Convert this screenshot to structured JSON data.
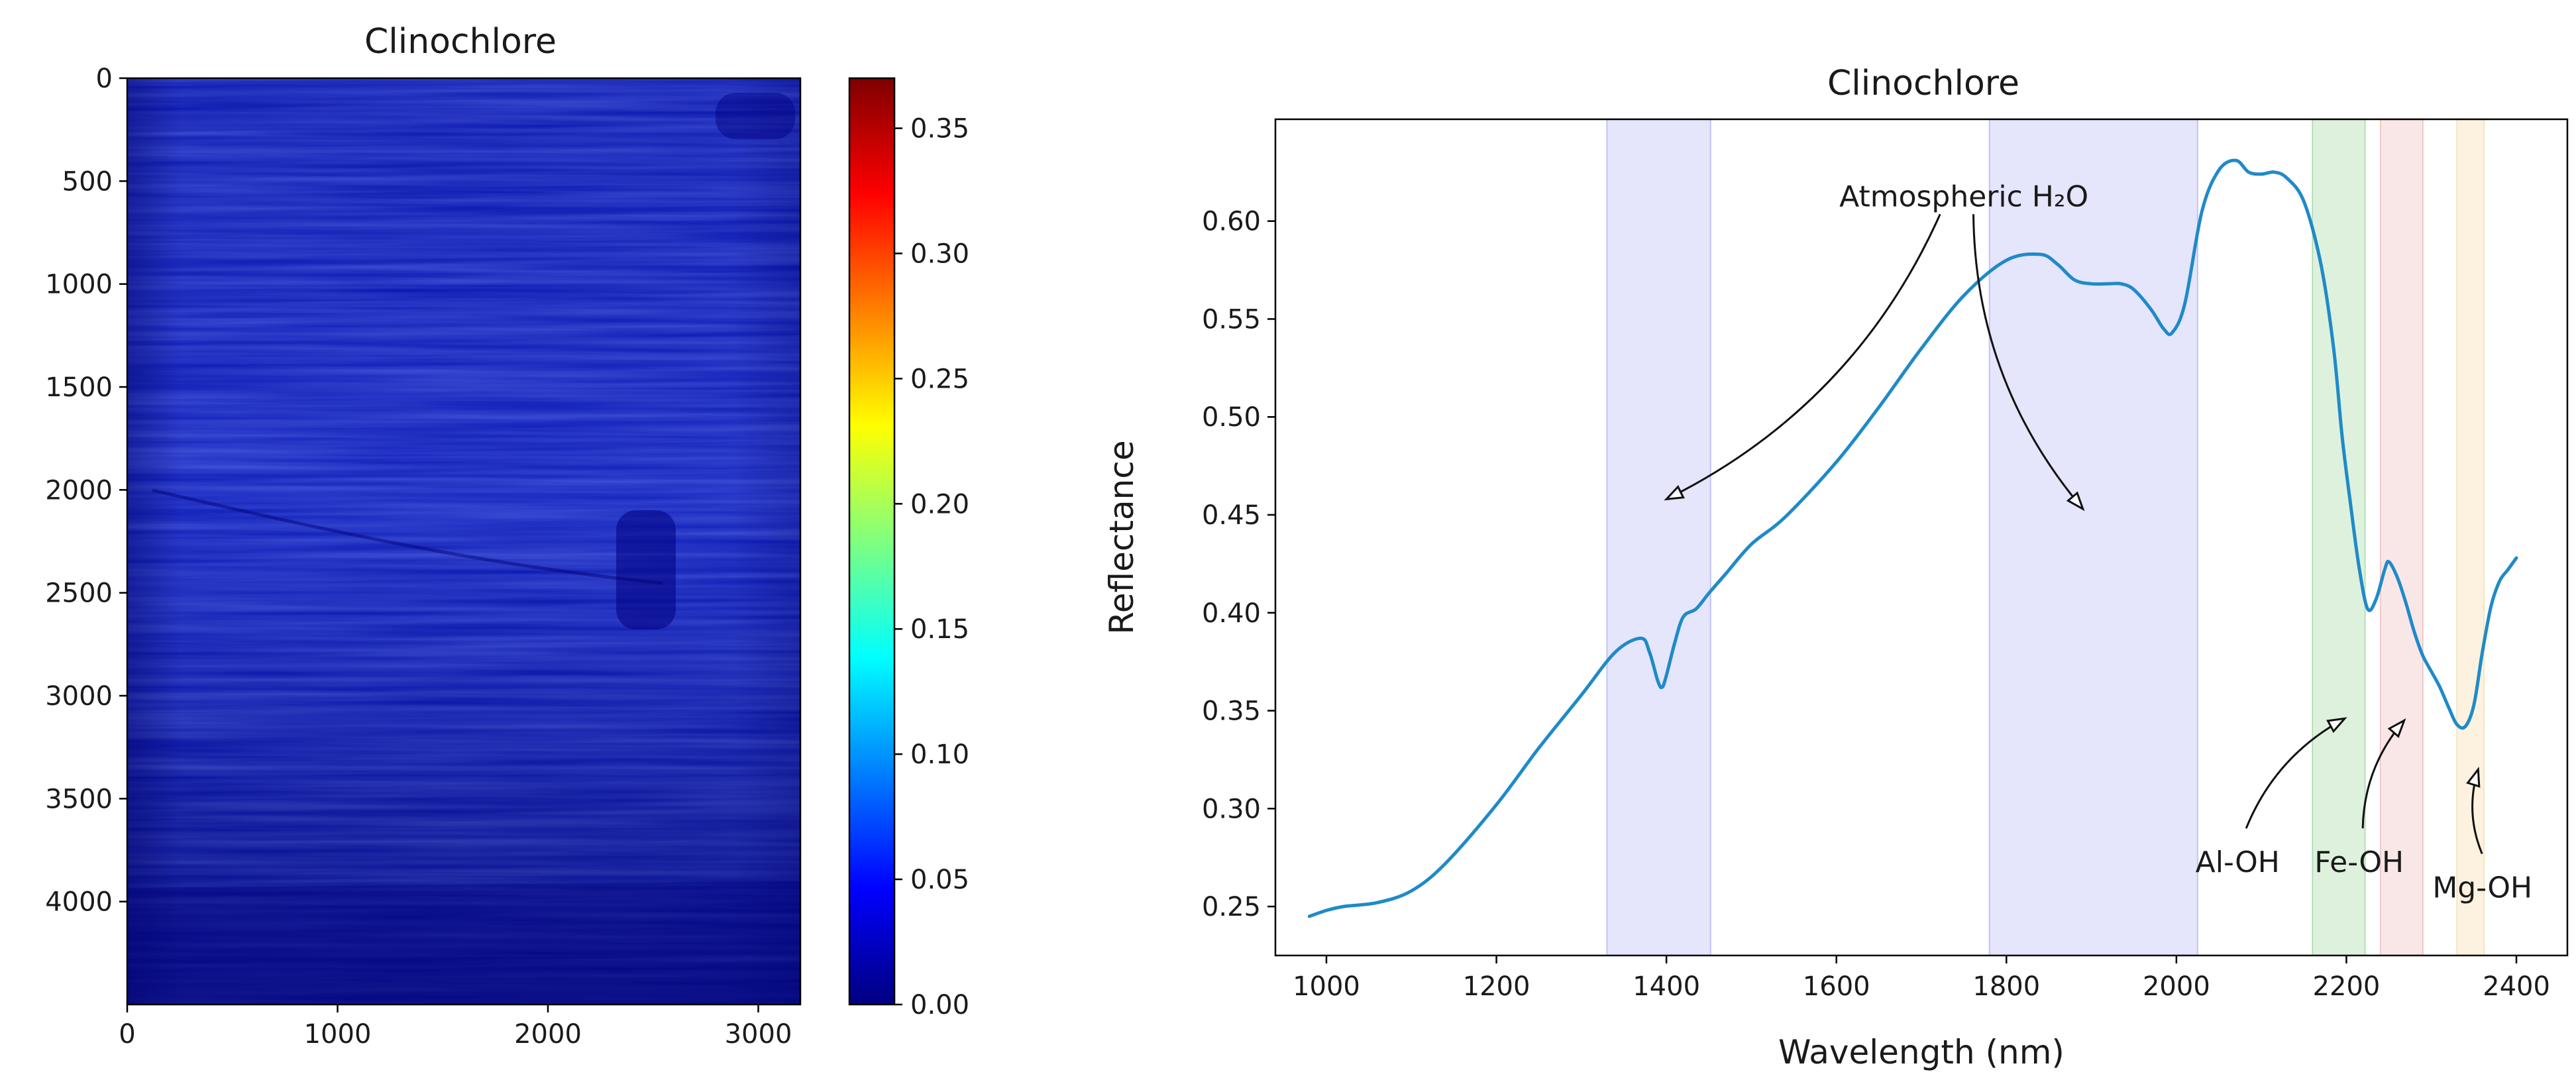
{
  "chart_data": [
    {
      "type": "heatmap",
      "title": "Clinochlore",
      "xlim": [
        0,
        3200
      ],
      "ylim": [
        4500,
        0
      ],
      "x_ticks": [
        "0",
        "1000",
        "2000",
        "3000"
      ],
      "y_ticks": [
        "0",
        "500",
        "1000",
        "1500",
        "2000",
        "2500",
        "3000",
        "3500",
        "4000"
      ],
      "colorbar": {
        "range": [
          0,
          0.37
        ],
        "ticks": [
          "0.00",
          "0.05",
          "0.10",
          "0.15",
          "0.20",
          "0.25",
          "0.30",
          "0.35"
        ],
        "colormap": "jet",
        "colors": [
          "#00007f",
          "#0000ff",
          "#007fff",
          "#00ffff",
          "#7fff7f",
          "#ffff00",
          "#ff7f00",
          "#ff0000",
          "#7f0000"
        ]
      },
      "dominant_value_range": [
        0.01,
        0.05
      ],
      "background_color": "#0a18a8"
    },
    {
      "type": "line",
      "title": "Clinochlore",
      "xlabel": "Wavelength (nm)",
      "ylabel": "Reflectance",
      "xlim": [
        940,
        2460
      ],
      "ylim": [
        0.225,
        0.652
      ],
      "x_ticks": [
        "1000",
        "1200",
        "1400",
        "1600",
        "1800",
        "2000",
        "2200",
        "2400"
      ],
      "y_ticks": [
        "0.25",
        "0.30",
        "0.35",
        "0.40",
        "0.45",
        "0.50",
        "0.55",
        "0.60"
      ],
      "line_color": "#1f8ac8",
      "series": [
        {
          "name": "Clinochlore",
          "x": [
            980,
            1000,
            1020,
            1060,
            1100,
            1140,
            1200,
            1250,
            1300,
            1340,
            1370,
            1380,
            1390,
            1395,
            1400,
            1410,
            1420,
            1435,
            1450,
            1470,
            1500,
            1540,
            1600,
            1650,
            1700,
            1750,
            1800,
            1840,
            1860,
            1880,
            1900,
            1920,
            1935,
            1950,
            1970,
            1985,
            1995,
            2010,
            2030,
            2050,
            2070,
            2085,
            2100,
            2115,
            2130,
            2150,
            2170,
            2185,
            2195,
            2205,
            2215,
            2225,
            2235,
            2245,
            2250,
            2260,
            2270,
            2280,
            2290,
            2300,
            2310,
            2320,
            2330,
            2340,
            2350,
            2360,
            2370,
            2380,
            2390,
            2400
          ],
          "y": [
            0.245,
            0.248,
            0.25,
            0.252,
            0.258,
            0.272,
            0.302,
            0.331,
            0.358,
            0.38,
            0.387,
            0.38,
            0.365,
            0.362,
            0.368,
            0.385,
            0.398,
            0.402,
            0.41,
            0.42,
            0.435,
            0.449,
            0.477,
            0.505,
            0.535,
            0.562,
            0.58,
            0.583,
            0.578,
            0.57,
            0.568,
            0.568,
            0.568,
            0.565,
            0.555,
            0.545,
            0.543,
            0.558,
            0.605,
            0.626,
            0.631,
            0.625,
            0.624,
            0.625,
            0.622,
            0.61,
            0.578,
            0.535,
            0.49,
            0.455,
            0.423,
            0.402,
            0.407,
            0.422,
            0.426,
            0.418,
            0.405,
            0.39,
            0.378,
            0.37,
            0.362,
            0.352,
            0.343,
            0.342,
            0.353,
            0.38,
            0.403,
            0.416,
            0.422,
            0.428
          ]
        }
      ],
      "bands": [
        {
          "name": "Atmospheric H2O band 1",
          "x0": 1330,
          "x1": 1452,
          "color": "#6f6ff0",
          "opacity": 0.18
        },
        {
          "name": "Atmospheric H2O band 2",
          "x0": 1780,
          "x1": 2025,
          "color": "#6f6ff0",
          "opacity": 0.18
        },
        {
          "name": "Al-OH band",
          "x0": 2160,
          "x1": 2222,
          "color": "#54b754",
          "opacity": 0.2
        },
        {
          "name": "Fe-OH band",
          "x0": 2240,
          "x1": 2290,
          "color": "#e07878",
          "opacity": 0.18
        },
        {
          "name": "Mg-OH band",
          "x0": 2330,
          "x1": 2362,
          "color": "#f2c060",
          "opacity": 0.2
        }
      ],
      "annotations": [
        {
          "label": "Atmospheric H₂O",
          "text_x": 1750,
          "text_y": 0.613,
          "targets": [
            [
              1400,
              0.458
            ],
            [
              1890,
              0.453
            ]
          ]
        },
        {
          "label": "Al-OH",
          "text_x": 2072,
          "text_y": 0.273,
          "targets": [
            [
              2198,
              0.346
            ]
          ]
        },
        {
          "label": "Fe-OH",
          "text_x": 2215,
          "text_y": 0.273,
          "targets": [
            [
              2268,
              0.345
            ]
          ]
        },
        {
          "label": "Mg-OH",
          "text_x": 2360,
          "text_y": 0.26,
          "targets": [
            [
              2355,
              0.32
            ]
          ]
        }
      ]
    }
  ]
}
